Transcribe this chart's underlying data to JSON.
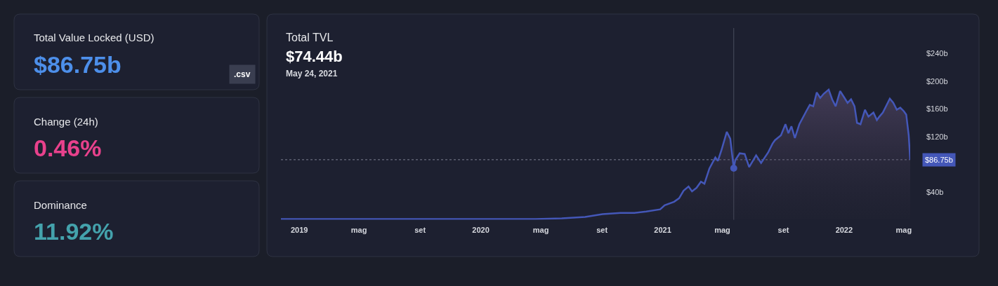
{
  "chart_data": [
    {
      "type": "other",
      "title": "Total Value Locked (USD)",
      "annotations": [
        "$86.75b",
        ".csv"
      ]
    },
    {
      "type": "other",
      "title": "Change (24h)",
      "annotations": [
        "0.46%"
      ]
    },
    {
      "type": "other",
      "title": "Dominance",
      "annotations": [
        "11.92%"
      ]
    },
    {
      "type": "area",
      "title": "Total TVL",
      "subtitle": "$74.44b",
      "annotations": [
        "May 24, 2021"
      ],
      "series": [
        {
          "color": "#4457b8",
          "x": [
            "2018-11-25",
            "2019-02-15",
            "2019-04-15",
            "2019-09-03",
            "2020-01-23",
            "2020-04-17",
            "2020-06-12",
            "2020-07-29",
            "2020-09-02",
            "2020-10-08",
            "2020-11-05",
            "2020-11-29",
            "2020-12-27",
            "2021-01-05",
            "2021-01-24",
            "2021-02-03",
            "2021-02-12",
            "2021-02-22",
            "2021-03-01",
            "2021-03-10",
            "2021-03-19",
            "2021-03-26",
            "2021-04-05",
            "2021-04-17",
            "2021-04-22",
            "2021-04-29",
            "2021-05-10",
            "2021-05-17",
            "2021-05-24",
            "2021-05-27",
            "2021-06-05",
            "2021-06-15",
            "2021-06-24",
            "2021-07-08",
            "2021-07-18",
            "2021-08-01",
            "2021-08-10",
            "2021-08-15",
            "2021-08-27",
            "2021-09-05",
            "2021-09-11",
            "2021-09-17",
            "2021-09-24",
            "2021-10-03",
            "2021-10-17",
            "2021-10-24",
            "2021-10-31",
            "2021-11-07",
            "2021-11-14",
            "2021-11-21",
            "2021-12-01",
            "2021-12-08",
            "2021-12-15",
            "2021-12-24",
            "2022-01-01",
            "2022-01-08",
            "2022-01-15",
            "2022-01-22",
            "2022-01-27",
            "2022-02-03",
            "2022-02-12",
            "2022-02-19",
            "2022-03-01",
            "2022-03-08",
            "2022-03-13",
            "2022-03-20",
            "2022-04-03",
            "2022-04-10",
            "2022-04-17",
            "2022-04-24",
            "2022-05-01",
            "2022-05-06",
            "2022-05-11",
            "2022-05-14"
          ],
          "values": [
            1,
            1,
            1,
            1,
            1,
            1,
            2,
            4,
            8,
            10,
            10,
            12,
            15,
            21,
            26,
            31,
            42,
            48,
            41,
            46,
            55,
            52,
            74,
            90,
            85,
            100,
            127,
            117,
            74.44,
            86,
            96,
            95,
            76,
            93,
            82,
            97,
            110,
            115,
            122,
            138,
            125,
            135,
            118,
            138,
            157,
            166,
            164,
            184,
            176,
            182,
            188,
            174,
            164,
            186,
            177,
            169,
            174,
            164,
            140,
            138,
            159,
            149,
            155,
            144,
            149,
            155,
            175,
            169,
            159,
            162,
            157,
            152,
            122,
            86.75
          ]
        },
        {
          "type": "scatter",
          "marker": "circle",
          "color": "#4457b8",
          "x": [
            "2021-05-24"
          ],
          "values": [
            74.44
          ]
        }
      ],
      "xlim": [
        "2018-11-25",
        "2022-05-14"
      ],
      "xticks": [
        {
          "value": "2019-01-01",
          "label": "2019"
        },
        {
          "value": "2019-05-01",
          "label": "mag"
        },
        {
          "value": "2019-09-01",
          "label": "set"
        },
        {
          "value": "2020-01-01",
          "label": "2020"
        },
        {
          "value": "2020-05-01",
          "label": "mag"
        },
        {
          "value": "2020-09-01",
          "label": "set"
        },
        {
          "value": "2021-01-01",
          "label": "2021"
        },
        {
          "value": "2021-05-01",
          "label": "mag"
        },
        {
          "value": "2021-09-01",
          "label": "set"
        },
        {
          "value": "2022-01-01",
          "label": "2022"
        },
        {
          "value": "2022-05-01",
          "label": "mag"
        }
      ],
      "ylim": [
        0,
        277
      ],
      "yticks": [
        {
          "value": 40,
          "label": "$40b"
        },
        {
          "value": 120,
          "label": "$120b"
        },
        {
          "value": 160,
          "label": "$160b"
        },
        {
          "value": 200,
          "label": "$200b"
        },
        {
          "value": 240,
          "label": "$240b"
        }
      ],
      "ref_lines": [
        {
          "axis": "x",
          "value": "2021-05-24",
          "color": "#4a4e5e",
          "line_style": "solid"
        },
        {
          "axis": "y",
          "value": 86.75,
          "label": "$86.75b",
          "color": "#7a7e90",
          "line_style": "dotted"
        }
      ]
    }
  ]
}
